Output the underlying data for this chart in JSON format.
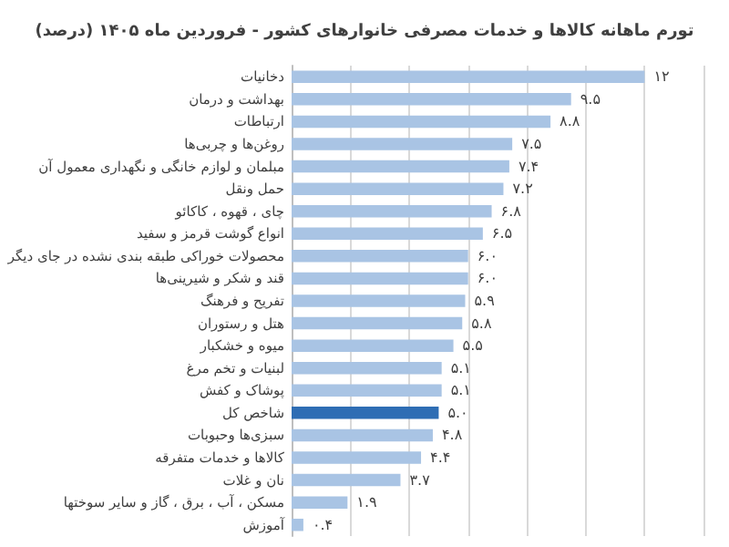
{
  "chart_data": {
    "type": "bar",
    "orientation": "horizontal",
    "title": "تورم ماهانه کالاها و خدمات مصرفی خانوارهای کشور - فروردین ماه ۱۴۰۵ (درصد)",
    "categories": [
      "دخانیات",
      "بهداشت و درمان",
      "ارتباطات",
      "روغن‌ها و چربی‌ها",
      "مبلمان و لوازم خانگی و نگهداری معمول آن",
      "حمل ونقل",
      "چای ، قهوه ، کاکائو",
      "انواع گوشت قرمز و سفید",
      "محصولات خوراکی طبقه بندی نشده در جای دیگر",
      "قند و شکر و شیرینی‌ها",
      "تفریح و فرهنگ",
      "هتل و رستوران",
      "میوه و خشکبار",
      "لبنیات و تخم مرغ",
      "پوشاک و کفش",
      "شاخص کل",
      "سبزی‌ها وحبوبات",
      "کالاها و خدمات متفرقه",
      "نان و غلات",
      "مسکن ، آب ، برق ، گاز و سایر سوختها",
      "آموزش"
    ],
    "values": [
      12,
      9.5,
      8.8,
      7.5,
      7.4,
      7.2,
      6.8,
      6.5,
      6.0,
      6.0,
      5.9,
      5.8,
      5.5,
      5.1,
      5.1,
      5.0,
      4.8,
      4.4,
      3.7,
      1.9,
      0.4
    ],
    "value_labels": [
      "۱۲",
      "۹.۵",
      "۸.۸",
      "۷.۵",
      "۷.۴",
      "۷.۲",
      "۶.۸",
      "۶.۵",
      "۶.۰",
      "۶.۰",
      "۵.۹",
      "۵.۸",
      "۵.۵",
      "۵.۱",
      "۵.۱",
      "۵.۰",
      "۴.۸",
      "۴.۴",
      "۳.۷",
      "۱.۹",
      "۰.۴"
    ],
    "colors": [
      "#a9c4e4",
      "#a9c4e4",
      "#a9c4e4",
      "#a9c4e4",
      "#a9c4e4",
      "#a9c4e4",
      "#a9c4e4",
      "#a9c4e4",
      "#a9c4e4",
      "#a9c4e4",
      "#a9c4e4",
      "#a9c4e4",
      "#a9c4e4",
      "#a9c4e4",
      "#a9c4e4",
      "#2e6db4",
      "#a9c4e4",
      "#a9c4e4",
      "#a9c4e4",
      "#a9c4e4",
      "#a9c4e4"
    ],
    "xlim": [
      0,
      14
    ],
    "xticks": [
      {
        "value": 0,
        "label": null
      },
      {
        "value": 2,
        "label": null
      },
      {
        "value": 4,
        "label": null
      },
      {
        "value": 6,
        "label": null
      },
      {
        "value": 8,
        "label": null
      },
      {
        "value": 10,
        "label": null
      },
      {
        "value": 12,
        "label": null
      },
      {
        "value": 14,
        "label": null
      }
    ],
    "tick_labels": "y",
    "grid": "x"
  }
}
